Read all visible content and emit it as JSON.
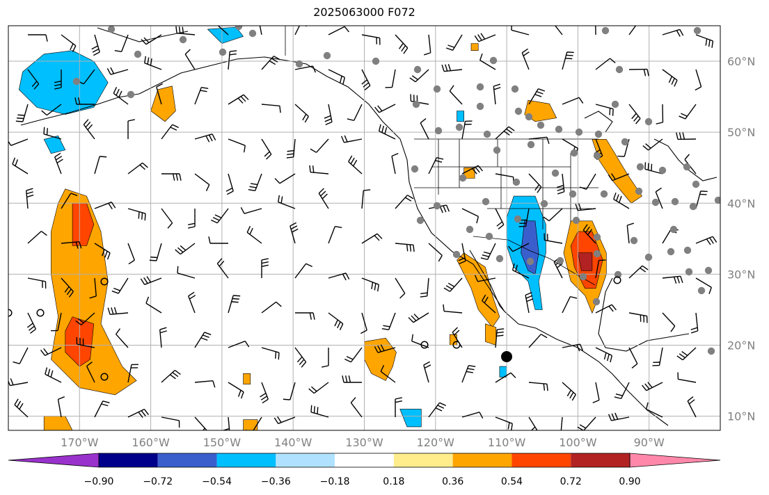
{
  "title": "2025063000 F072",
  "map": {
    "lon_range": [
      -180,
      -80
    ],
    "lat_range": [
      8,
      65
    ],
    "lat_ticks": [
      {
        "value": 10,
        "label": "10°N"
      },
      {
        "value": 20,
        "label": "20°N"
      },
      {
        "value": 30,
        "label": "30°N"
      },
      {
        "value": 40,
        "label": "40°N"
      },
      {
        "value": 50,
        "label": "50°N"
      },
      {
        "value": 60,
        "label": "60°N"
      }
    ],
    "lon_ticks": [
      {
        "value": -170,
        "label": "170°W"
      },
      {
        "value": -160,
        "label": "160°W"
      },
      {
        "value": -150,
        "label": "150°W"
      },
      {
        "value": -140,
        "label": "140°W"
      },
      {
        "value": -130,
        "label": "130°W"
      },
      {
        "value": -120,
        "label": "120°W"
      },
      {
        "value": -110,
        "label": "110°W"
      },
      {
        "value": -100,
        "label": "100°W"
      },
      {
        "value": -90,
        "label": "90°W"
      }
    ],
    "gridlines": true,
    "tick_color": "#808080"
  },
  "colorbar": {
    "extend": "both",
    "ticks": [
      "−0.90",
      "−0.72",
      "−0.54",
      "−0.36",
      "−0.18",
      "0.18",
      "0.36",
      "0.54",
      "0.72",
      "0.90"
    ],
    "colors": [
      "#9932cc",
      "#00008b",
      "#3a5fcd",
      "#00bfff",
      "#b0e2ff",
      "#ffffff",
      "#ffec8b",
      "#ffa500",
      "#ff4500",
      "#b22222",
      "#ff88aa"
    ]
  },
  "contour_regions": [
    {
      "level": "-0.36",
      "color": "#00bfff",
      "points": [
        [
          -178,
          58.5
        ],
        [
          -175,
          61
        ],
        [
          -171,
          61.5
        ],
        [
          -168,
          60
        ],
        [
          -166,
          57
        ],
        [
          -168,
          53.5
        ],
        [
          -172,
          52.5
        ],
        [
          -176,
          53.5
        ],
        [
          -178.5,
          56
        ]
      ]
    },
    {
      "level": "-0.36",
      "color": "#00bfff",
      "points": [
        [
          -152,
          64.5
        ],
        [
          -148,
          64.8
        ],
        [
          -147,
          63.5
        ],
        [
          -150,
          62.5
        ]
      ]
    },
    {
      "level": "-0.36",
      "color": "#00bfff",
      "points": [
        [
          -175,
          49
        ],
        [
          -173,
          49.5
        ],
        [
          -172,
          47.5
        ],
        [
          -174,
          47
        ]
      ]
    },
    {
      "level": "-0.36",
      "color": "#00bfff",
      "points": [
        [
          -109,
          41
        ],
        [
          -106,
          41
        ],
        [
          -104.5,
          37
        ],
        [
          -104.5,
          33
        ],
        [
          -105.5,
          29
        ],
        [
          -105,
          25
        ],
        [
          -106,
          25
        ],
        [
          -107,
          29
        ],
        [
          -109,
          31
        ],
        [
          -110,
          34
        ],
        [
          -110,
          38
        ]
      ]
    },
    {
      "level": "-0.54",
      "color": "#3a5fcd",
      "points": [
        [
          -107.5,
          37.5
        ],
        [
          -106,
          37.5
        ],
        [
          -105.5,
          33
        ],
        [
          -106,
          30
        ],
        [
          -107,
          30.5
        ],
        [
          -108,
          33
        ]
      ]
    },
    {
      "level": "-0.36",
      "color": "#00bfff",
      "points": [
        [
          -111,
          17
        ],
        [
          -110,
          17
        ],
        [
          -110,
          15.5
        ],
        [
          -111,
          15.5
        ]
      ]
    },
    {
      "level": "-0.36",
      "color": "#00bfff",
      "points": [
        [
          -125,
          11
        ],
        [
          -122,
          11
        ],
        [
          -122,
          8.5
        ],
        [
          -124,
          8.5
        ]
      ]
    },
    {
      "level": "-0.36",
      "color": "#00bfff",
      "points": [
        [
          -117,
          53
        ],
        [
          -116,
          53
        ],
        [
          -116,
          51.5
        ],
        [
          -117,
          51.5
        ]
      ]
    },
    {
      "level": "0.36",
      "color": "#ffa500",
      "points": [
        [
          -172,
          42
        ],
        [
          -169,
          41
        ],
        [
          -167,
          36
        ],
        [
          -166,
          29
        ],
        [
          -167,
          23
        ],
        [
          -164,
          17
        ],
        [
          -162,
          15
        ],
        [
          -165,
          13
        ],
        [
          -170,
          14
        ],
        [
          -174,
          18
        ],
        [
          -173,
          24
        ],
        [
          -174,
          30
        ],
        [
          -174,
          36
        ],
        [
          -173,
          40
        ]
      ]
    },
    {
      "level": "0.54",
      "color": "#ff4500",
      "points": [
        [
          -171,
          40
        ],
        [
          -169,
          40
        ],
        [
          -168,
          37
        ],
        [
          -169,
          34
        ],
        [
          -171,
          34
        ],
        [
          -171,
          37
        ]
      ]
    },
    {
      "level": "0.54",
      "color": "#ff4500",
      "points": [
        [
          -171,
          24
        ],
        [
          -168,
          23
        ],
        [
          -168.5,
          18
        ],
        [
          -170,
          17
        ],
        [
          -172,
          19
        ],
        [
          -172,
          22
        ]
      ]
    },
    {
      "level": "0.36",
      "color": "#ffa500",
      "points": [
        [
          -175,
          10
        ],
        [
          -172,
          10
        ],
        [
          -171,
          8
        ],
        [
          -175,
          8
        ]
      ]
    },
    {
      "level": "0.36",
      "color": "#ffa500",
      "points": [
        [
          -159,
          56
        ],
        [
          -157,
          56.5
        ],
        [
          -156.5,
          53
        ],
        [
          -158,
          51.5
        ],
        [
          -160,
          53
        ]
      ]
    },
    {
      "level": "0.36",
      "color": "#ffa500",
      "points": [
        [
          -130,
          20.5
        ],
        [
          -127,
          21
        ],
        [
          -125.5,
          19
        ],
        [
          -126,
          17
        ],
        [
          -127,
          15
        ],
        [
          -129,
          16
        ],
        [
          -130,
          18
        ]
      ]
    },
    {
      "level": "0.36",
      "color": "#ffa500",
      "points": [
        [
          -116,
          33
        ],
        [
          -113,
          31
        ],
        [
          -112,
          27
        ],
        [
          -111,
          24
        ],
        [
          -112,
          22.5
        ],
        [
          -114,
          25
        ],
        [
          -115,
          28
        ],
        [
          -117,
          32
        ]
      ]
    },
    {
      "level": "0.36",
      "color": "#ffa500",
      "points": [
        [
          -101,
          37.5
        ],
        [
          -98,
          37.5
        ],
        [
          -96,
          33
        ],
        [
          -96,
          30
        ],
        [
          -97,
          27
        ],
        [
          -98,
          24.5
        ],
        [
          -99,
          27
        ],
        [
          -101,
          29
        ],
        [
          -102,
          33
        ]
      ]
    },
    {
      "level": "0.54",
      "color": "#ff4500",
      "points": [
        [
          -100,
          36
        ],
        [
          -98,
          36
        ],
        [
          -96.5,
          32
        ],
        [
          -97.5,
          28
        ],
        [
          -99,
          28
        ],
        [
          -100.5,
          31
        ],
        [
          -101,
          34
        ]
      ]
    },
    {
      "level": "0.72",
      "color": "#b22222",
      "points": [
        [
          -100,
          33
        ],
        [
          -98,
          33
        ],
        [
          -98,
          30.5
        ],
        [
          -99.5,
          30.5
        ]
      ]
    },
    {
      "level": "0.36",
      "color": "#ffa500",
      "points": [
        [
          -98,
          49
        ],
        [
          -96,
          49
        ],
        [
          -93,
          44
        ],
        [
          -91,
          41
        ],
        [
          -92.5,
          40
        ],
        [
          -95,
          43
        ],
        [
          -97,
          46
        ]
      ]
    },
    {
      "level": "0.36",
      "color": "#ffa500",
      "points": [
        [
          -107,
          54.5
        ],
        [
          -104,
          54
        ],
        [
          -103,
          52
        ],
        [
          -106,
          51.5
        ],
        [
          -107.5,
          52.5
        ]
      ]
    },
    {
      "level": "0.36",
      "color": "#ffa500",
      "points": [
        [
          -116,
          45
        ],
        [
          -114.5,
          45
        ],
        [
          -114.5,
          43.5
        ],
        [
          -116,
          43.5
        ]
      ]
    },
    {
      "level": "0.36",
      "color": "#ffa500",
      "points": [
        [
          -118,
          21.5
        ],
        [
          -117,
          21.5
        ],
        [
          -117,
          20
        ],
        [
          -118,
          20
        ]
      ]
    },
    {
      "level": "0.36",
      "color": "#ffa500",
      "points": [
        [
          -113,
          23
        ],
        [
          -111.5,
          22.5
        ],
        [
          -111.5,
          20
        ],
        [
          -113,
          20.5
        ]
      ]
    },
    {
      "level": "0.36",
      "color": "#ffa500",
      "points": [
        [
          -147,
          16
        ],
        [
          -146,
          16
        ],
        [
          -146,
          14.5
        ],
        [
          -147,
          14.5
        ]
      ]
    },
    {
      "level": "0.36",
      "color": "#ffa500",
      "points": [
        [
          -147,
          9.5
        ],
        [
          -145,
          9.5
        ],
        [
          -145,
          8
        ],
        [
          -147,
          8
        ]
      ]
    },
    {
      "level": "0.36",
      "color": "#ffa500",
      "points": [
        [
          -115,
          62.5
        ],
        [
          -114,
          62.5
        ],
        [
          -114,
          61.5
        ],
        [
          -115,
          61.5
        ]
      ]
    }
  ]
}
